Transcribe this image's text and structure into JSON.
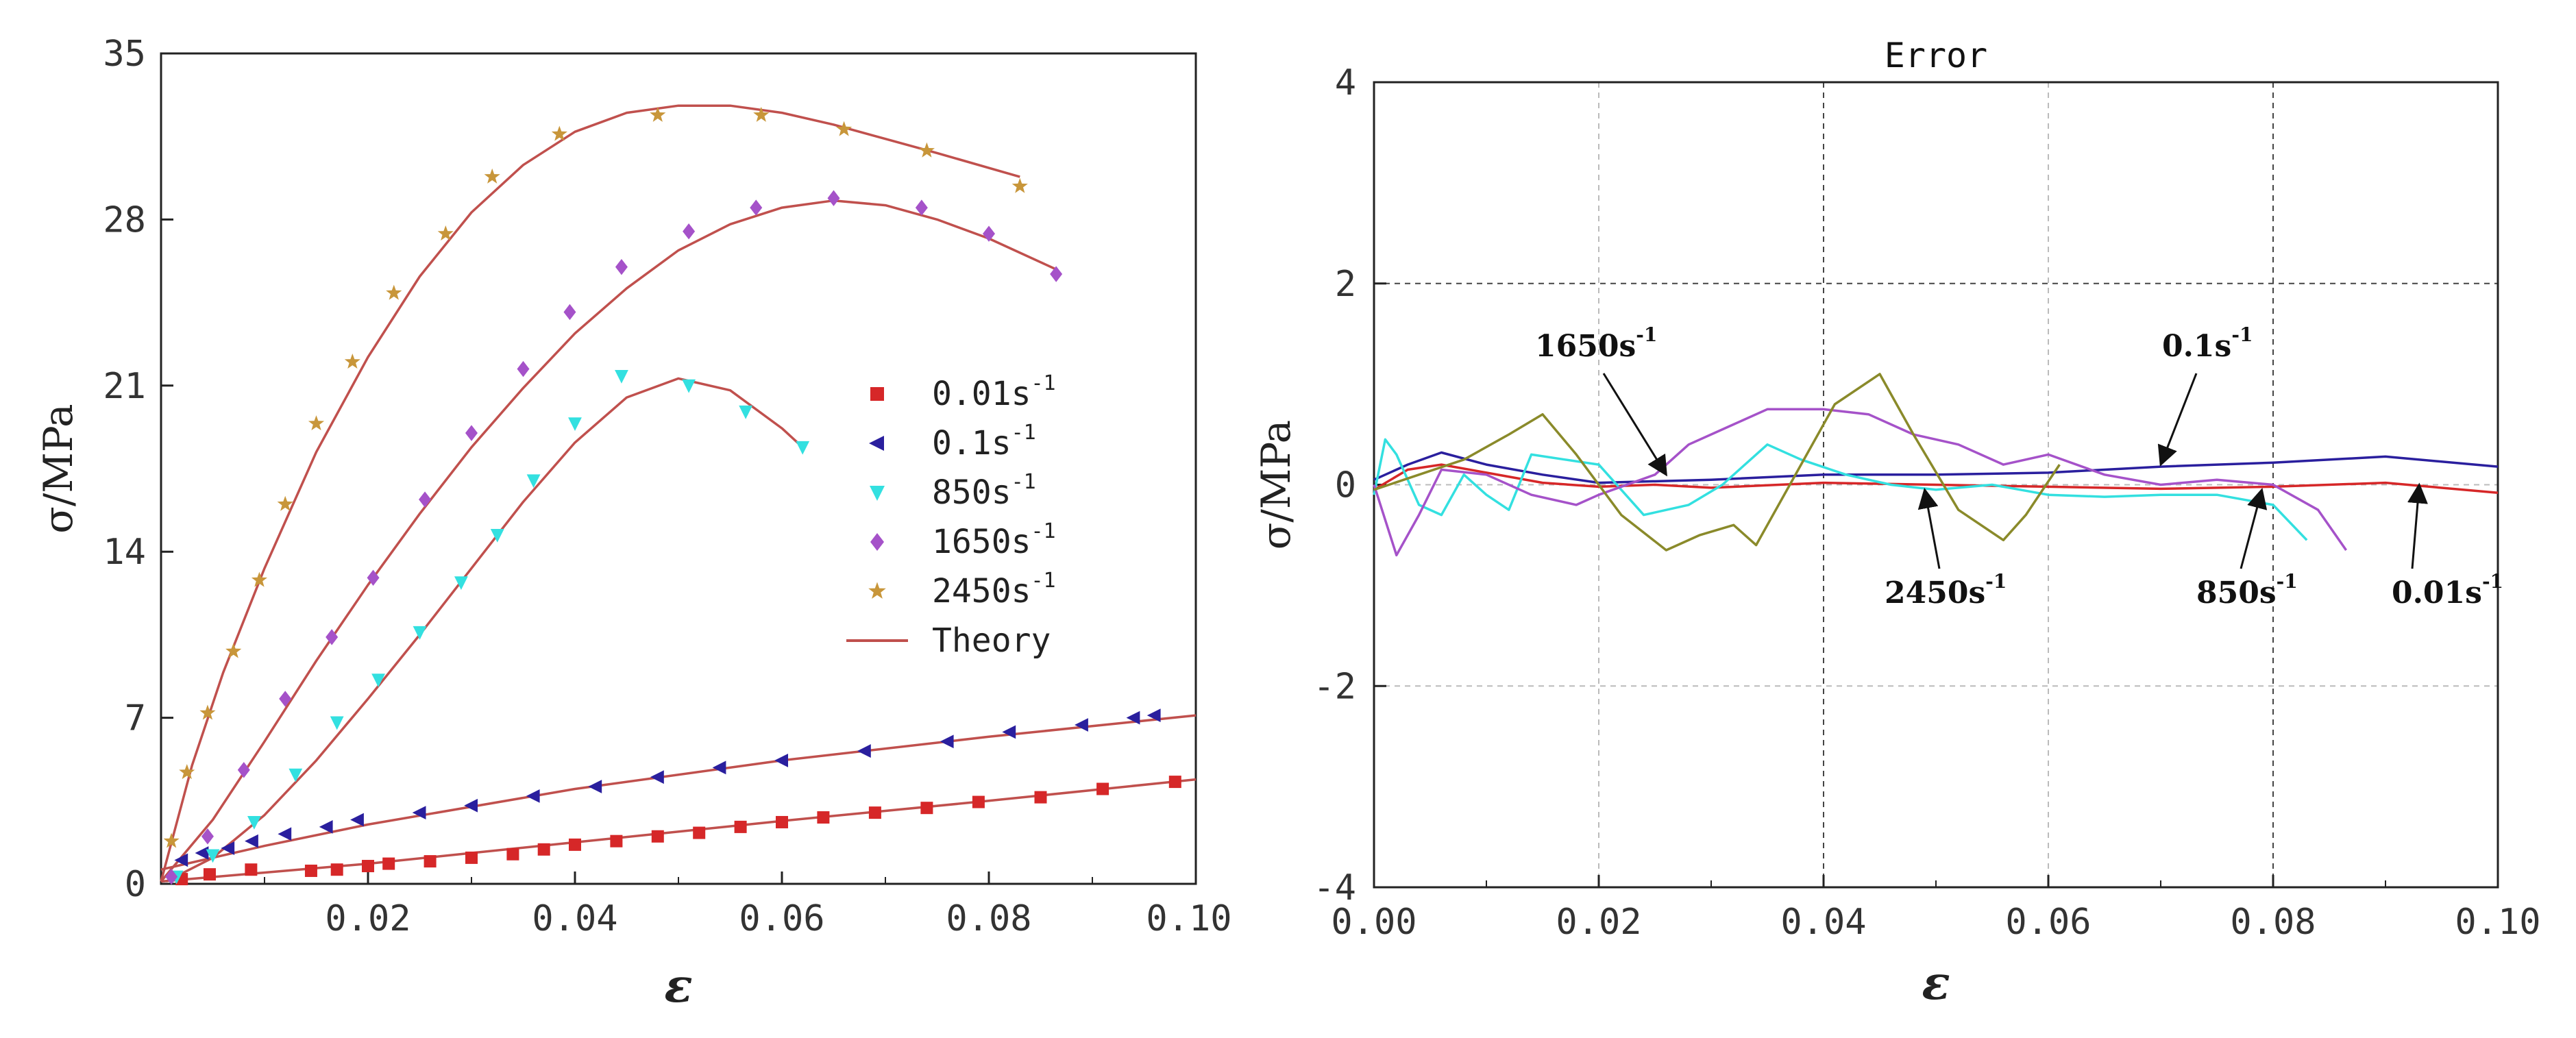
{
  "colors": {
    "s001": "#d62728",
    "s01": "#2a1f9e",
    "s850": "#33e0e0",
    "s1650": "#a552c9",
    "s2450": "#c8963a",
    "theory": "#c0504d",
    "err2450": "#8a8a2a"
  },
  "chart_data": [
    {
      "type": "scatter",
      "title": "",
      "xlabel": "ε",
      "ylabel": "σ/MPa",
      "xlim": [
        0,
        0.1
      ],
      "ylim": [
        0,
        35
      ],
      "xticks": [
        0.02,
        0.04,
        0.06,
        0.08,
        0.1
      ],
      "xtick_labels": [
        "0.02",
        "0.04",
        "0.06",
        "0.08",
        "0.10"
      ],
      "yticks": [
        0,
        7,
        14,
        21,
        28,
        35
      ],
      "ytick_labels": [
        "0",
        "7",
        "14",
        "21",
        "28",
        "35"
      ],
      "grid": false,
      "legend_position": "center-right",
      "legend": [
        {
          "base": "0.01s",
          "sup": "-1",
          "marker": "square",
          "color_key": "s001"
        },
        {
          "base": "0.1s",
          "sup": "-1",
          "marker": "triangle-left",
          "color_key": "s01"
        },
        {
          "base": "850s",
          "sup": "-1",
          "marker": "triangle-down",
          "color_key": "s850"
        },
        {
          "base": "1650s",
          "sup": "-1",
          "marker": "diamond",
          "color_key": "s1650"
        },
        {
          "base": "2450s",
          "sup": "-1",
          "marker": "star",
          "color_key": "s2450"
        },
        {
          "base": "Theory",
          "sup": "",
          "marker": "line",
          "color_key": "theory"
        }
      ],
      "series": [
        {
          "name": "0.01s-1",
          "marker": "square",
          "color_key": "s001",
          "x": [
            0.002,
            0.0047,
            0.0087,
            0.0145,
            0.017,
            0.02,
            0.022,
            0.026,
            0.03,
            0.034,
            0.037,
            0.04,
            0.044,
            0.048,
            0.052,
            0.056,
            0.06,
            0.064,
            0.069,
            0.074,
            0.079,
            0.085,
            0.091,
            0.098
          ],
          "y": [
            0.2,
            0.4,
            0.6,
            0.55,
            0.6,
            0.75,
            0.85,
            0.95,
            1.1,
            1.25,
            1.45,
            1.65,
            1.8,
            2.0,
            2.15,
            2.4,
            2.6,
            2.8,
            3.0,
            3.2,
            3.45,
            3.65,
            4.0,
            4.3
          ]
        },
        {
          "name": "0.1s-1",
          "marker": "triangle-left",
          "color_key": "s01",
          "x": [
            0.002,
            0.004,
            0.0065,
            0.0088,
            0.012,
            0.016,
            0.019,
            0.025,
            0.03,
            0.036,
            0.042,
            0.048,
            0.054,
            0.06,
            0.068,
            0.076,
            0.082,
            0.089,
            0.094,
            0.096
          ],
          "y": [
            1.0,
            1.3,
            1.5,
            1.8,
            2.1,
            2.4,
            2.7,
            3.0,
            3.3,
            3.7,
            4.1,
            4.5,
            4.9,
            5.2,
            5.6,
            6.0,
            6.4,
            6.7,
            7.0,
            7.1
          ]
        },
        {
          "name": "850s-1",
          "marker": "triangle-down",
          "color_key": "s850",
          "x": [
            0.0015,
            0.005,
            0.009,
            0.013,
            0.017,
            0.021,
            0.025,
            0.029,
            0.0325,
            0.036,
            0.04,
            0.0445,
            0.051,
            0.0565,
            0.062
          ],
          "y": [
            0.3,
            1.2,
            2.6,
            4.6,
            6.8,
            8.6,
            10.6,
            12.7,
            14.7,
            17.0,
            19.4,
            21.4,
            21.0,
            19.9,
            18.4
          ]
        },
        {
          "name": "1650s-1",
          "marker": "diamond",
          "color_key": "s1650",
          "x": [
            0.001,
            0.0045,
            0.008,
            0.012,
            0.0165,
            0.0205,
            0.0255,
            0.03,
            0.035,
            0.0395,
            0.0445,
            0.051,
            0.0575,
            0.065,
            0.0735,
            0.08,
            0.0865
          ],
          "y": [
            0.3,
            2.0,
            4.8,
            7.8,
            10.4,
            12.9,
            16.2,
            19.0,
            21.7,
            24.1,
            26.0,
            27.5,
            28.5,
            28.9,
            28.5,
            27.4,
            25.7
          ]
        },
        {
          "name": "2450s-1",
          "marker": "star",
          "color_key": "s2450",
          "x": [
            0.001,
            0.0025,
            0.0045,
            0.007,
            0.0095,
            0.012,
            0.015,
            0.0185,
            0.0225,
            0.0275,
            0.032,
            0.0385,
            0.048,
            0.058,
            0.066,
            0.074,
            0.083
          ],
          "y": [
            1.8,
            4.7,
            7.2,
            9.8,
            12.8,
            16.0,
            19.4,
            22.0,
            24.9,
            27.4,
            29.8,
            31.6,
            32.4,
            32.4,
            31.8,
            30.9,
            29.4
          ]
        }
      ],
      "theory": [
        {
          "name": "Theory-0.01",
          "x": [
            0,
            0.02,
            0.04,
            0.06,
            0.08,
            0.1
          ],
          "y": [
            0.1,
            0.85,
            1.75,
            2.65,
            3.5,
            4.4
          ]
        },
        {
          "name": "Theory-0.1",
          "x": [
            0,
            0.01,
            0.02,
            0.04,
            0.06,
            0.08,
            0.1
          ],
          "y": [
            0.6,
            1.6,
            2.5,
            4.0,
            5.2,
            6.2,
            7.1
          ]
        },
        {
          "name": "Theory-850",
          "x": [
            0.0005,
            0.005,
            0.01,
            0.015,
            0.02,
            0.025,
            0.03,
            0.035,
            0.04,
            0.045,
            0.05,
            0.055,
            0.06,
            0.062
          ],
          "y": [
            0.1,
            1.1,
            2.9,
            5.2,
            7.8,
            10.5,
            13.3,
            16.1,
            18.6,
            20.5,
            21.3,
            20.8,
            19.2,
            18.4
          ]
        },
        {
          "name": "Theory-1650",
          "x": [
            0,
            0.005,
            0.01,
            0.015,
            0.02,
            0.025,
            0.03,
            0.035,
            0.04,
            0.045,
            0.05,
            0.055,
            0.06,
            0.065,
            0.07,
            0.075,
            0.08,
            0.0865
          ],
          "y": [
            0.1,
            2.7,
            6.0,
            9.4,
            12.6,
            15.6,
            18.4,
            20.9,
            23.2,
            25.1,
            26.7,
            27.8,
            28.5,
            28.8,
            28.6,
            28.0,
            27.2,
            25.9
          ]
        },
        {
          "name": "Theory-2450",
          "x": [
            0,
            0.003,
            0.006,
            0.01,
            0.015,
            0.02,
            0.025,
            0.03,
            0.035,
            0.04,
            0.045,
            0.05,
            0.055,
            0.06,
            0.065,
            0.07,
            0.075,
            0.083
          ],
          "y": [
            0.1,
            5.0,
            8.9,
            13.3,
            18.2,
            22.2,
            25.6,
            28.3,
            30.3,
            31.7,
            32.5,
            32.8,
            32.8,
            32.5,
            32.0,
            31.4,
            30.8,
            29.8
          ]
        }
      ]
    },
    {
      "type": "line",
      "title": "Error",
      "xlabel": "ε",
      "ylabel": "σ/MPa",
      "xlim": [
        0,
        0.1
      ],
      "ylim": [
        -4,
        4
      ],
      "xticks": [
        0,
        0.02,
        0.04,
        0.06,
        0.08,
        0.1
      ],
      "xtick_labels": [
        "0.00",
        "0.02",
        "0.04",
        "0.06",
        "0.08",
        "0.10"
      ],
      "yticks": [
        -4,
        -2,
        0,
        2,
        4
      ],
      "ytick_labels": [
        "-4",
        "-2",
        "0",
        "2",
        "4"
      ],
      "grid": true,
      "series": [
        {
          "name": "0.01s-1",
          "color_key": "s001",
          "x": [
            0,
            0.003,
            0.006,
            0.01,
            0.015,
            0.02,
            0.025,
            0.03,
            0.04,
            0.05,
            0.06,
            0.07,
            0.08,
            0.09,
            0.1
          ],
          "y": [
            -0.05,
            0.15,
            0.2,
            0.12,
            0.02,
            -0.02,
            0.0,
            -0.03,
            0.02,
            0.0,
            -0.02,
            -0.04,
            -0.02,
            0.02,
            -0.08
          ]
        },
        {
          "name": "0.1s-1",
          "color_key": "s01",
          "x": [
            0,
            0.003,
            0.006,
            0.01,
            0.015,
            0.02,
            0.03,
            0.04,
            0.05,
            0.06,
            0.07,
            0.08,
            0.09,
            0.1
          ],
          "y": [
            0.05,
            0.2,
            0.32,
            0.2,
            0.1,
            0.02,
            0.05,
            0.1,
            0.1,
            0.12,
            0.18,
            0.22,
            0.28,
            0.18
          ]
        },
        {
          "name": "850s-1",
          "color_key": "s850",
          "x": [
            0,
            0.001,
            0.002,
            0.004,
            0.006,
            0.008,
            0.01,
            0.012,
            0.014,
            0.017,
            0.02,
            0.024,
            0.028,
            0.031,
            0.035,
            0.038,
            0.042,
            0.046,
            0.05,
            0.055,
            0.06,
            0.065,
            0.07,
            0.075,
            0.08,
            0.083
          ],
          "y": [
            -0.1,
            0.45,
            0.3,
            -0.2,
            -0.3,
            0.1,
            -0.1,
            -0.25,
            0.3,
            0.25,
            0.2,
            -0.3,
            -0.2,
            0.0,
            0.4,
            0.25,
            0.1,
            0.0,
            -0.05,
            0.0,
            -0.1,
            -0.12,
            -0.1,
            -0.1,
            -0.2,
            -0.55
          ]
        },
        {
          "name": "1650s-1",
          "color_key": "s1650",
          "x": [
            0,
            0.002,
            0.004,
            0.006,
            0.01,
            0.014,
            0.018,
            0.02,
            0.025,
            0.028,
            0.032,
            0.035,
            0.04,
            0.044,
            0.048,
            0.052,
            0.056,
            0.06,
            0.065,
            0.07,
            0.075,
            0.08,
            0.084,
            0.0865
          ],
          "y": [
            0.0,
            -0.7,
            -0.3,
            0.15,
            0.1,
            -0.1,
            -0.2,
            -0.1,
            0.1,
            0.4,
            0.6,
            0.75,
            0.75,
            0.7,
            0.5,
            0.4,
            0.2,
            0.3,
            0.1,
            0.0,
            0.05,
            0.0,
            -0.25,
            -0.65
          ]
        },
        {
          "name": "2450s-1",
          "color_key": "err2450",
          "x": [
            0,
            0.004,
            0.008,
            0.012,
            0.015,
            0.018,
            0.022,
            0.026,
            0.029,
            0.032,
            0.034,
            0.037,
            0.041,
            0.045,
            0.048,
            0.052,
            0.056,
            0.058,
            0.061
          ],
          "y": [
            -0.05,
            0.1,
            0.25,
            0.5,
            0.7,
            0.3,
            -0.3,
            -0.65,
            -0.5,
            -0.4,
            -0.6,
            0.0,
            0.8,
            1.1,
            0.5,
            -0.25,
            -0.55,
            -0.3,
            0.2
          ]
        }
      ],
      "annotations": [
        {
          "base": "1650s",
          "sup": "-1",
          "arrow_to": [
            0.026,
            0.1
          ]
        },
        {
          "base": "0.1s",
          "sup": "-1",
          "arrow_to": [
            0.07,
            0.2
          ]
        },
        {
          "base": "2450s",
          "sup": "-1",
          "arrow_to": [
            0.049,
            -0.05
          ]
        },
        {
          "base": "850s",
          "sup": "-1",
          "arrow_to": [
            0.079,
            -0.05
          ]
        },
        {
          "base": "0.01s",
          "sup": "-1",
          "arrow_to": [
            0.093,
            0.0
          ]
        }
      ]
    }
  ]
}
